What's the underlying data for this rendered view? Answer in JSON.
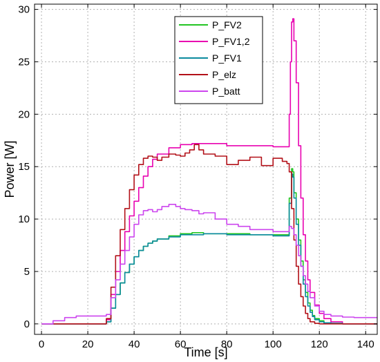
{
  "chart_data": {
    "type": "line",
    "title": "",
    "xlabel": "Time [s]",
    "ylabel": "Power [W]",
    "xlim": [
      -3,
      145
    ],
    "ylim": [
      -1,
      30.5
    ],
    "xticks": [
      0,
      20,
      40,
      60,
      80,
      100,
      120,
      140
    ],
    "yticks": [
      0,
      5,
      10,
      15,
      20,
      25,
      30
    ],
    "grid": true,
    "legend_position": "top-center",
    "series": [
      {
        "name": "P_FV2",
        "color": "#22c422",
        "x": [
          0,
          27,
          28,
          30,
          32,
          34,
          36,
          38,
          40,
          42,
          44,
          46,
          48,
          50,
          55,
          60,
          65,
          70,
          80,
          90,
          100,
          106,
          107,
          108,
          108.5,
          109,
          110,
          111,
          112,
          113,
          114,
          115,
          116,
          117,
          118,
          120,
          122,
          125,
          130,
          145
        ],
        "y": [
          0,
          0,
          0.2,
          1.5,
          2.8,
          3.9,
          4.9,
          5.7,
          6.4,
          7.0,
          7.4,
          7.7,
          7.9,
          8.1,
          8.4,
          8.6,
          8.7,
          8.6,
          8.6,
          8.5,
          8.5,
          8.5,
          12,
          14.8,
          14.5,
          12.5,
          10,
          8,
          6,
          4.2,
          3.0,
          2.0,
          1.3,
          0.8,
          0.5,
          0.3,
          0.1,
          0.05,
          0,
          0
        ]
      },
      {
        "name": "P_FV1,2",
        "color": "#e800b0",
        "x": [
          0,
          27,
          28,
          30,
          32,
          34,
          36,
          38,
          40,
          42,
          44,
          46,
          48,
          50,
          55,
          60,
          65,
          70,
          80,
          90,
          100,
          106,
          107,
          107.5,
          108,
          108.5,
          109,
          110,
          111,
          112,
          113,
          114,
          115,
          116,
          118,
          120,
          122,
          125,
          130,
          145
        ],
        "y": [
          0,
          0,
          0.4,
          2.8,
          5.0,
          7.0,
          8.8,
          10.3,
          11.7,
          13.0,
          14.1,
          15.0,
          15.7,
          16.2,
          16.8,
          17.1,
          17.2,
          17.2,
          17.0,
          17.0,
          16.9,
          16.9,
          20,
          25,
          28.8,
          29.1,
          27,
          23,
          17,
          12,
          8.5,
          6.0,
          4.2,
          3.0,
          1.8,
          1.0,
          0.5,
          0.2,
          0,
          0
        ]
      },
      {
        "name": "P_FV1",
        "color": "#0a8a9e",
        "x": [
          0,
          27,
          28,
          30,
          32,
          34,
          36,
          38,
          40,
          42,
          44,
          46,
          48,
          50,
          55,
          60,
          65,
          70,
          80,
          90,
          100,
          106,
          107,
          108,
          108.5,
          109,
          110,
          111,
          112,
          113,
          114,
          115,
          116,
          117,
          118,
          120,
          122,
          125,
          130,
          145
        ],
        "y": [
          0,
          0,
          0.2,
          1.5,
          2.8,
          3.9,
          4.9,
          5.7,
          6.4,
          7.0,
          7.4,
          7.7,
          7.9,
          8.1,
          8.3,
          8.5,
          8.5,
          8.6,
          8.5,
          8.5,
          8.4,
          8.4,
          11.5,
          14.3,
          14.0,
          12.0,
          9.5,
          7.5,
          5.5,
          3.8,
          2.6,
          1.7,
          1.1,
          0.7,
          0.4,
          0.2,
          0.1,
          0.05,
          0,
          0
        ]
      },
      {
        "name": "P_elz",
        "color": "#b21018",
        "x": [
          0,
          27,
          28,
          30,
          32,
          34,
          36,
          38,
          40,
          42,
          44,
          46,
          48,
          50,
          52,
          55,
          58,
          60,
          62,
          64,
          66,
          68,
          70,
          75,
          80,
          85,
          90,
          95,
          100,
          104,
          106,
          107,
          108,
          109,
          110,
          111,
          112,
          113,
          114,
          115,
          116,
          118,
          120,
          125,
          130,
          145
        ],
        "y": [
          0,
          0,
          0.5,
          3.5,
          6.5,
          9.0,
          11.0,
          12.8,
          14.2,
          15.2,
          15.8,
          16.0,
          15.9,
          15.6,
          15.9,
          16.2,
          16.1,
          16.0,
          16.3,
          16.6,
          17.1,
          16.6,
          16.2,
          16.0,
          15.2,
          15.6,
          15.9,
          15.1,
          15.8,
          15.5,
          15.3,
          14.5,
          11,
          8,
          5.5,
          3.8,
          2.6,
          1.7,
          1.0,
          0.5,
          0.2,
          0.05,
          0,
          0,
          0,
          0
        ]
      },
      {
        "name": "P_batt",
        "color": "#cc44ee",
        "x": [
          0,
          5,
          10,
          15,
          20,
          25,
          27,
          28,
          30,
          32,
          34,
          36,
          38,
          40,
          42,
          44,
          46,
          48,
          50,
          52,
          55,
          58,
          60,
          62,
          65,
          68,
          70,
          75,
          80,
          85,
          90,
          95,
          100,
          104,
          106,
          107,
          108,
          109,
          110,
          111,
          112,
          113,
          114,
          115,
          116,
          118,
          120,
          122,
          125,
          130,
          135,
          140,
          145
        ],
        "y": [
          0,
          0.3,
          0.6,
          0.75,
          0.75,
          0.75,
          0.75,
          0.9,
          2.5,
          4.2,
          5.7,
          7.0,
          8.3,
          9.5,
          10.4,
          10.8,
          10.9,
          10.7,
          10.9,
          11.2,
          11.4,
          11.2,
          11.0,
          10.9,
          10.8,
          10.5,
          10.6,
          10.0,
          9.5,
          9.3,
          9.0,
          9.0,
          8.8,
          8.8,
          8.8,
          9.3,
          9.1,
          8.5,
          7.5,
          6.5,
          5.5,
          4.6,
          3.8,
          3.1,
          2.5,
          1.7,
          1.2,
          0.9,
          0.75,
          0.65,
          0.6,
          0.6,
          0.6
        ]
      }
    ]
  }
}
